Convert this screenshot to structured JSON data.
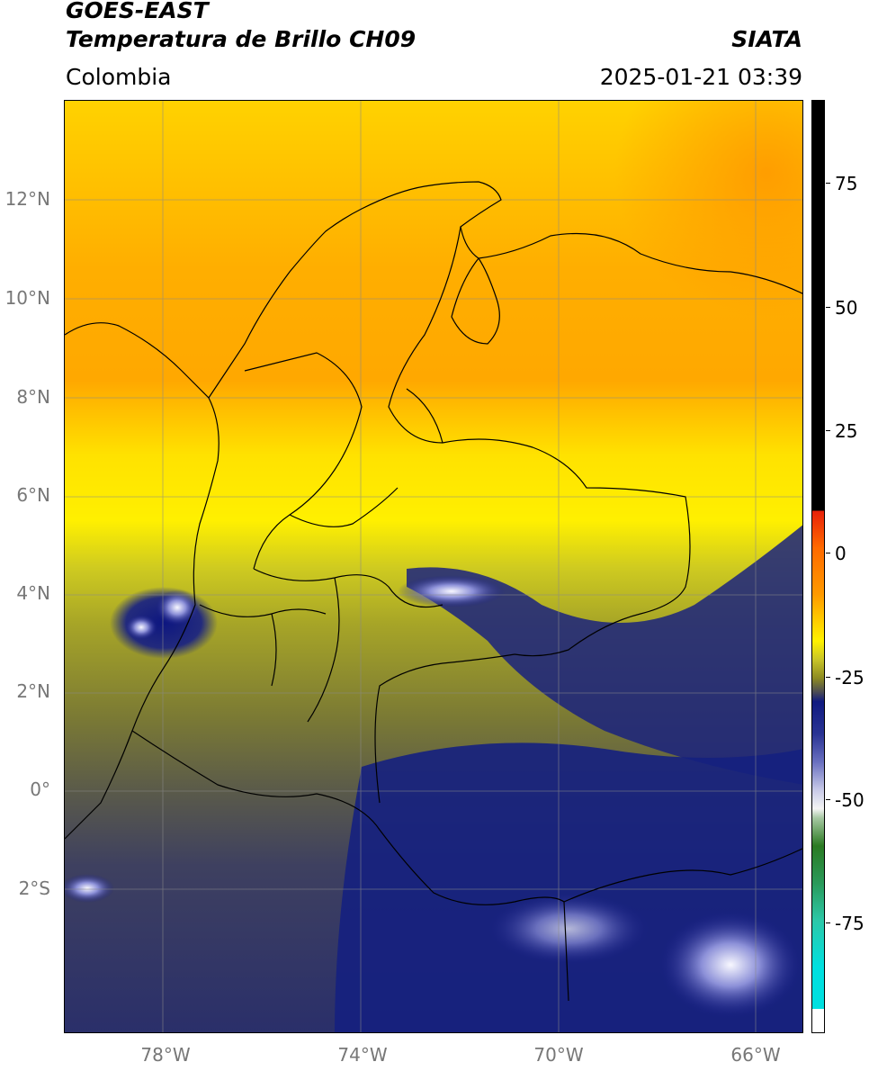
{
  "header": {
    "satellite": "GOES-EAST",
    "product": "Temperatura de Brillo CH09",
    "organization": "SIATA",
    "region": "Colombia",
    "datetime": "2025-01-21 03:39"
  },
  "map": {
    "lat_ticks": [
      "12°N",
      "10°N",
      "8°N",
      "6°N",
      "4°N",
      "2°N",
      "0°",
      "2°S"
    ],
    "lon_ticks": [
      "78°W",
      "74°W",
      "70°W",
      "66°W"
    ],
    "gridlines": true,
    "coastlines": true,
    "boundaries": [
      "country borders",
      "department borders"
    ]
  },
  "colorbar": {
    "ticks": [
      "75",
      "50",
      "25",
      "0",
      "-25",
      "-50",
      "-75"
    ],
    "colors": {
      "warm_black": "#000000",
      "red": "#e8200a",
      "orange": "#ff9400",
      "yellow": "#fff200",
      "olive": "#8c8a22",
      "gray": "#4a4a55",
      "navy": "#101a80",
      "white": "#f4f4f4",
      "green": "#2a7a22",
      "teal": "#2cc8a8",
      "cyan": "#00e0e0"
    }
  }
}
